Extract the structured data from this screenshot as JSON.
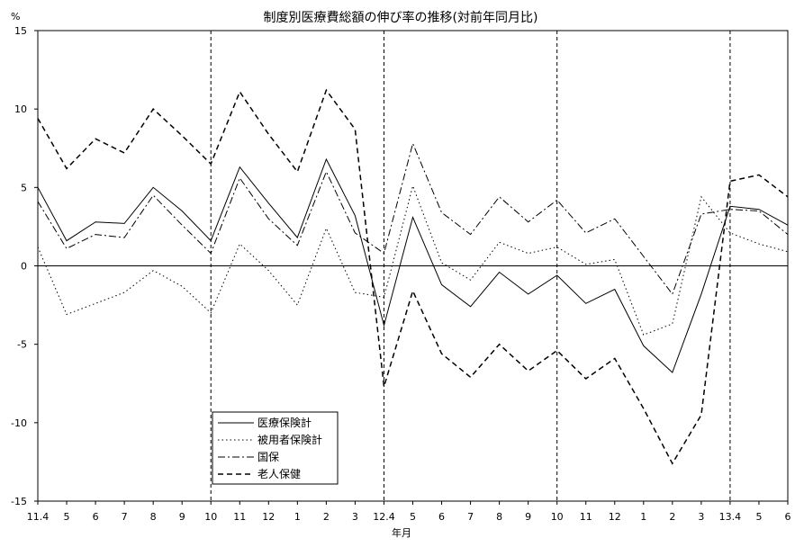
{
  "chart_data": {
    "type": "line",
    "title": "制度別医療費総額の伸び率の推移(対前年同月比)",
    "ylabel": "%",
    "xlabel": "年月",
    "ylim": [
      -15,
      15
    ],
    "yticks": [
      15,
      10,
      5,
      0,
      -5,
      -10,
      -15
    ],
    "categories": [
      "11.4",
      "5",
      "6",
      "7",
      "8",
      "9",
      "10",
      "11",
      "12",
      "1",
      "2",
      "3",
      "12.4",
      "5",
      "6",
      "7",
      "8",
      "9",
      "10",
      "11",
      "12",
      "1",
      "2",
      "3",
      "13.4",
      "5",
      "6"
    ],
    "year_separators": [
      "10",
      "12.4",
      "10",
      "13.4"
    ],
    "legend_position": "bottom-left",
    "series": [
      {
        "name": "医療保険計",
        "style": "solid",
        "values": [
          5.0,
          1.6,
          2.8,
          2.7,
          5.0,
          3.5,
          1.6,
          6.3,
          4.0,
          1.8,
          6.8,
          3.2,
          -3.8,
          3.1,
          -1.2,
          -2.6,
          -0.4,
          -1.8,
          -0.6,
          -2.4,
          -1.5,
          -5.1,
          -6.8,
          -1.8,
          3.8,
          3.6,
          2.6
        ]
      },
      {
        "name": "被用者保険計",
        "style": "dotted",
        "values": [
          1.2,
          -3.1,
          -2.4,
          -1.7,
          -0.3,
          -1.3,
          -3.0,
          1.4,
          -0.3,
          -2.5,
          2.4,
          -1.7,
          -2.0,
          5.1,
          0.2,
          -0.9,
          1.5,
          0.8,
          1.2,
          0.1,
          0.4,
          -4.4,
          -3.7,
          4.4,
          2.1,
          1.4,
          0.9
        ]
      },
      {
        "name": "国保",
        "style": "dashdot",
        "values": [
          4.1,
          1.1,
          2.0,
          1.8,
          4.5,
          2.6,
          0.8,
          5.6,
          3.0,
          1.3,
          6.0,
          2.1,
          0.8,
          7.8,
          3.4,
          2.0,
          4.4,
          2.8,
          4.2,
          2.1,
          3.0,
          0.6,
          -1.8,
          3.3,
          3.6,
          3.5,
          2.0
        ]
      },
      {
        "name": "老人保健",
        "style": "dashed",
        "values": [
          9.4,
          6.2,
          8.1,
          7.2,
          10.0,
          8.3,
          6.5,
          11.1,
          8.4,
          6.0,
          11.2,
          8.7,
          -7.7,
          -1.6,
          -5.6,
          -7.1,
          -5.0,
          -6.7,
          -5.4,
          -7.2,
          -5.9,
          -9.1,
          -12.6,
          -9.5,
          5.4,
          5.8,
          4.4
        ]
      }
    ]
  }
}
